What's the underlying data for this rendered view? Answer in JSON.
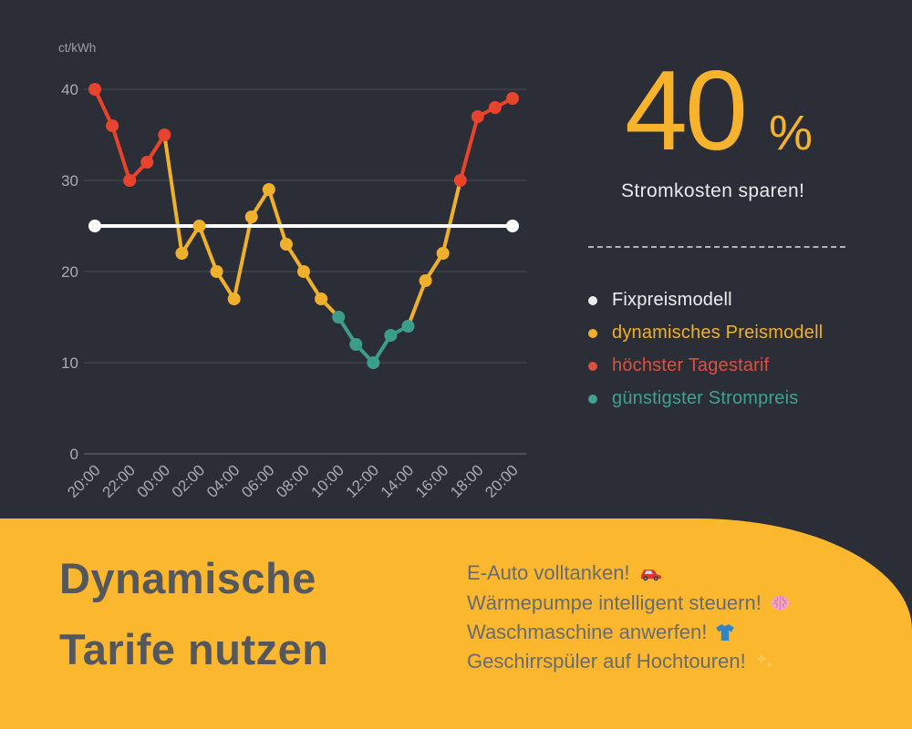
{
  "stat": {
    "value": "40",
    "unit": "%",
    "caption": "Stromkosten sparen!",
    "accent_color": "#F7B32C"
  },
  "legend": [
    {
      "label": "Fixpreismodell",
      "color": "#EDEEF0"
    },
    {
      "label": "dynamisches Preismodell",
      "color": "#EFB02C"
    },
    {
      "label": "höchster Tagestarif",
      "color": "#DC5040"
    },
    {
      "label": "günstigster Strompreis",
      "color": "#41A090"
    }
  ],
  "panel": {
    "title_line1": "Dynamische",
    "title_line2": "Tarife nutzen",
    "background": "#FBB72E",
    "title_color": "#54575C",
    "tips": [
      {
        "text": "E-Auto volltanken!",
        "icon": "car-icon"
      },
      {
        "text": "Wärmepumpe intelligent steuern!",
        "icon": "brain-icon"
      },
      {
        "text": "Waschmaschine anwerfen!",
        "icon": "tshirt-icon"
      },
      {
        "text": "Geschirrspüler auf Hochtouren!",
        "icon": "sparkles-icon"
      }
    ]
  },
  "chart_data": {
    "type": "line",
    "title": "",
    "xlabel": "",
    "ylabel": "ct/kWh",
    "ylim": [
      0,
      40
    ],
    "yticks": [
      0,
      10,
      20,
      30,
      40
    ],
    "grid": true,
    "legend_position": "right",
    "x": [
      "20:00",
      "21:00",
      "22:00",
      "23:00",
      "00:00",
      "01:00",
      "02:00",
      "03:00",
      "04:00",
      "05:00",
      "06:00",
      "07:00",
      "08:00",
      "09:00",
      "10:00",
      "11:00",
      "12:00",
      "13:00",
      "14:00",
      "15:00",
      "16:00",
      "17:00",
      "18:00",
      "19:00",
      "20:00"
    ],
    "xtick_labels": [
      "20:00",
      "22:00",
      "00:00",
      "02:00",
      "04:00",
      "06:00",
      "08:00",
      "10:00",
      "12:00",
      "14:00",
      "16:00",
      "18:00",
      "20:00"
    ],
    "series": [
      {
        "name": "Fixpreismodell",
        "type": "constant",
        "value": 25,
        "color": "#FFFFFF"
      },
      {
        "name": "dynamisches Preismodell",
        "values": [
          40,
          36,
          30,
          32,
          35,
          22,
          25,
          20,
          17,
          26,
          29,
          23,
          20,
          17,
          15,
          12,
          10,
          13,
          14,
          19,
          22,
          30,
          37,
          38,
          39
        ],
        "bands": [
          "high",
          "high",
          "high",
          "high",
          "high",
          "mid",
          "mid",
          "mid",
          "mid",
          "mid",
          "mid",
          "mid",
          "mid",
          "mid",
          "low",
          "low",
          "low",
          "low",
          "low",
          "mid",
          "mid",
          "high",
          "high",
          "high",
          "high"
        ],
        "band_colors": {
          "mid": "#EFB02C",
          "high": "#E8442D",
          "low": "#3D9D8B"
        },
        "band_names": {
          "mid": "dynamisches Preismodell",
          "high": "höchster Tagestarif",
          "low": "günstigster Strompreis"
        }
      }
    ],
    "axis_text_color": "#A8ACB3",
    "grid_color": "rgba(255,255,255,0.15)"
  }
}
